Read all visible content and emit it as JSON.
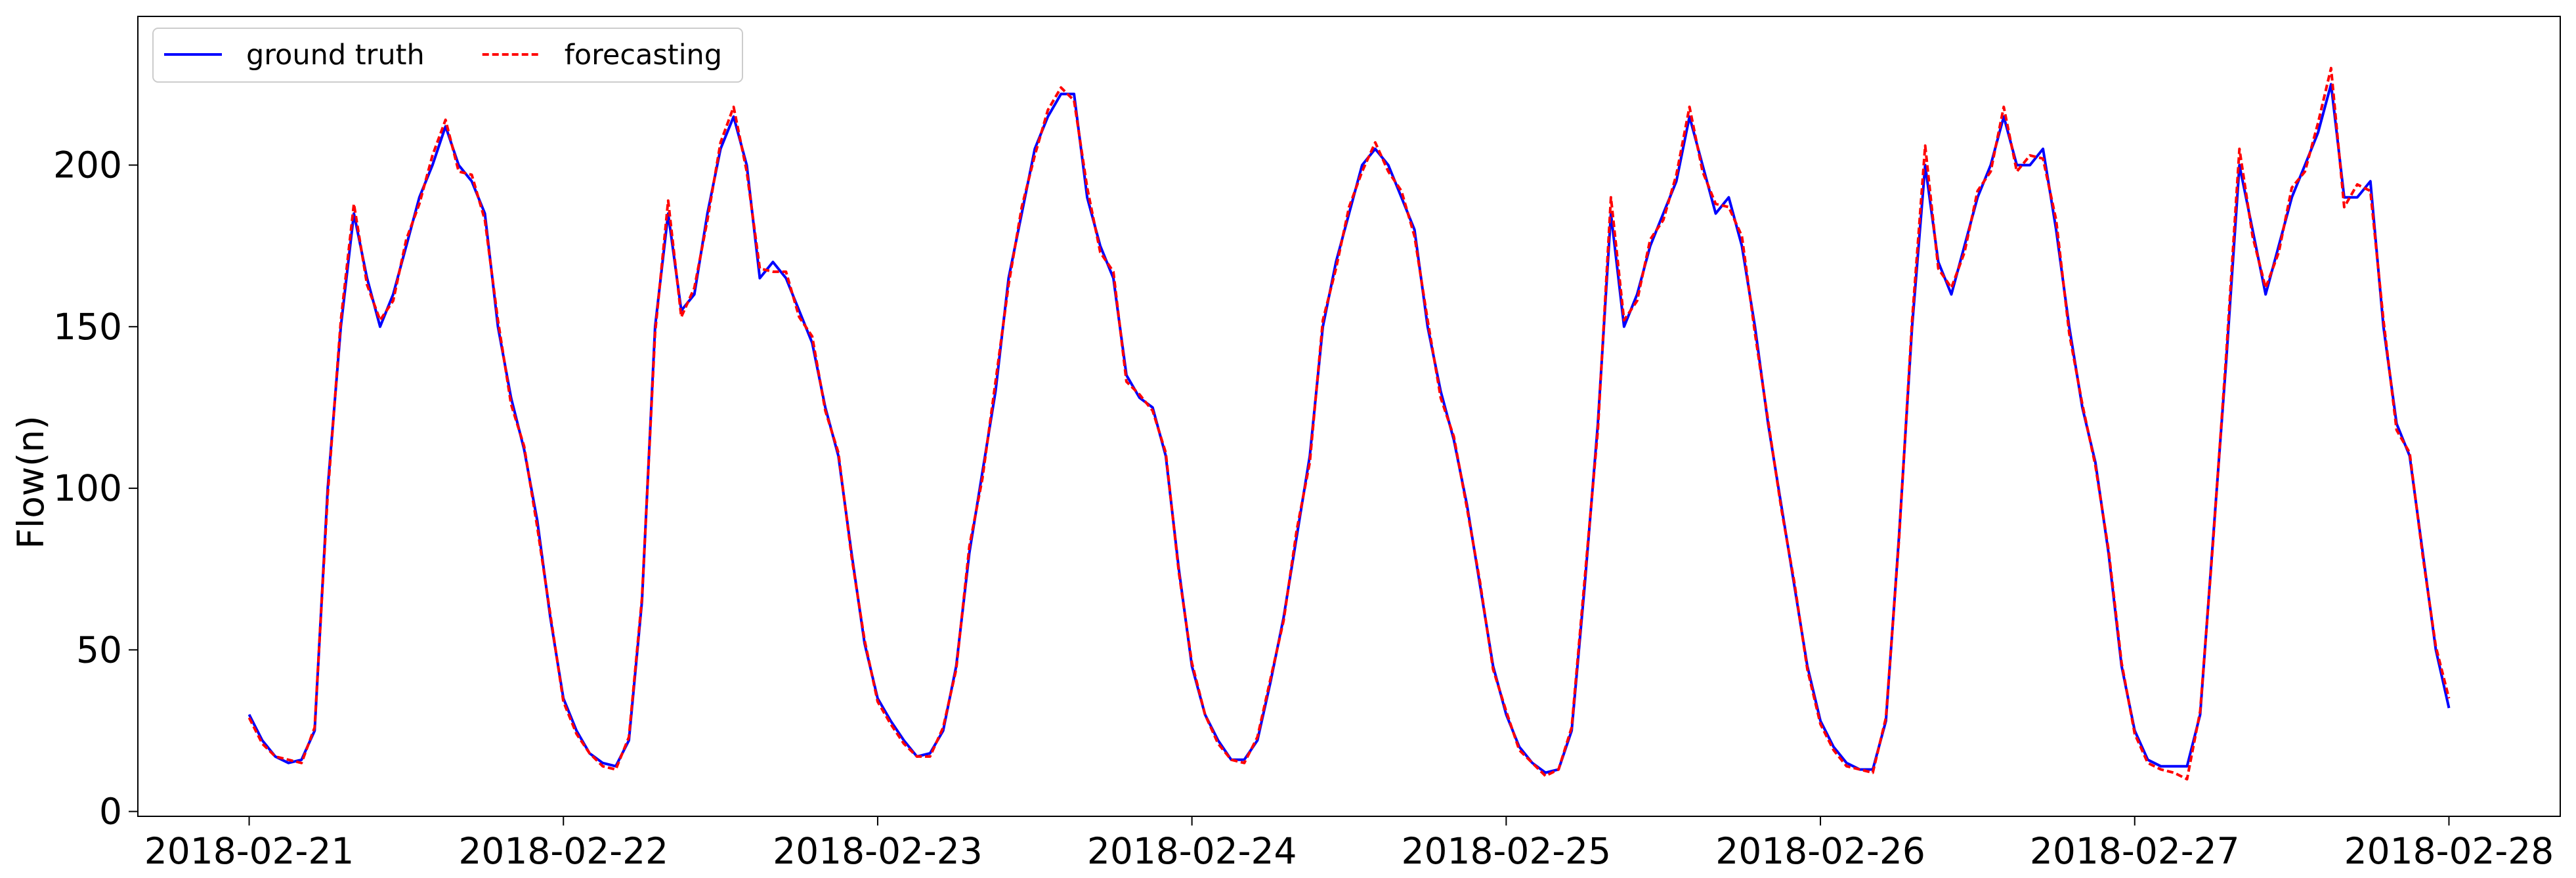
{
  "chart_data": {
    "type": "line",
    "ylabel": "Flow(n)",
    "x": [
      "2018-02-21T00:00",
      "2018-02-21T01:00",
      "2018-02-21T02:00",
      "2018-02-21T03:00",
      "2018-02-21T04:00",
      "2018-02-21T05:00",
      "2018-02-21T06:00",
      "2018-02-21T07:00",
      "2018-02-21T08:00",
      "2018-02-21T09:00",
      "2018-02-21T10:00",
      "2018-02-21T11:00",
      "2018-02-21T12:00",
      "2018-02-21T13:00",
      "2018-02-21T14:00",
      "2018-02-21T15:00",
      "2018-02-21T16:00",
      "2018-02-21T17:00",
      "2018-02-21T18:00",
      "2018-02-21T19:00",
      "2018-02-21T20:00",
      "2018-02-21T21:00",
      "2018-02-21T22:00",
      "2018-02-21T23:00",
      "2018-02-22T00:00",
      "2018-02-22T01:00",
      "2018-02-22T02:00",
      "2018-02-22T03:00",
      "2018-02-22T04:00",
      "2018-02-22T05:00",
      "2018-02-22T06:00",
      "2018-02-22T07:00",
      "2018-02-22T08:00",
      "2018-02-22T09:00",
      "2018-02-22T10:00",
      "2018-02-22T11:00",
      "2018-02-22T12:00",
      "2018-02-22T13:00",
      "2018-02-22T14:00",
      "2018-02-22T15:00",
      "2018-02-22T16:00",
      "2018-02-22T17:00",
      "2018-02-22T18:00",
      "2018-02-22T19:00",
      "2018-02-22T20:00",
      "2018-02-22T21:00",
      "2018-02-22T22:00",
      "2018-02-22T23:00",
      "2018-02-23T00:00",
      "2018-02-23T01:00",
      "2018-02-23T02:00",
      "2018-02-23T03:00",
      "2018-02-23T04:00",
      "2018-02-23T05:00",
      "2018-02-23T06:00",
      "2018-02-23T07:00",
      "2018-02-23T08:00",
      "2018-02-23T09:00",
      "2018-02-23T10:00",
      "2018-02-23T11:00",
      "2018-02-23T12:00",
      "2018-02-23T13:00",
      "2018-02-23T14:00",
      "2018-02-23T15:00",
      "2018-02-23T16:00",
      "2018-02-23T17:00",
      "2018-02-23T18:00",
      "2018-02-23T19:00",
      "2018-02-23T20:00",
      "2018-02-23T21:00",
      "2018-02-23T22:00",
      "2018-02-23T23:00",
      "2018-02-24T00:00",
      "2018-02-24T01:00",
      "2018-02-24T02:00",
      "2018-02-24T03:00",
      "2018-02-24T04:00",
      "2018-02-24T05:00",
      "2018-02-24T06:00",
      "2018-02-24T07:00",
      "2018-02-24T08:00",
      "2018-02-24T09:00",
      "2018-02-24T10:00",
      "2018-02-24T11:00",
      "2018-02-24T12:00",
      "2018-02-24T13:00",
      "2018-02-24T14:00",
      "2018-02-24T15:00",
      "2018-02-24T16:00",
      "2018-02-24T17:00",
      "2018-02-24T18:00",
      "2018-02-24T19:00",
      "2018-02-24T20:00",
      "2018-02-24T21:00",
      "2018-02-24T22:00",
      "2018-02-24T23:00",
      "2018-02-25T00:00",
      "2018-02-25T01:00",
      "2018-02-25T02:00",
      "2018-02-25T03:00",
      "2018-02-25T04:00",
      "2018-02-25T05:00",
      "2018-02-25T06:00",
      "2018-02-25T07:00",
      "2018-02-25T08:00",
      "2018-02-25T09:00",
      "2018-02-25T10:00",
      "2018-02-25T11:00",
      "2018-02-25T12:00",
      "2018-02-25T13:00",
      "2018-02-25T14:00",
      "2018-02-25T15:00",
      "2018-02-25T16:00",
      "2018-02-25T17:00",
      "2018-02-25T18:00",
      "2018-02-25T19:00",
      "2018-02-25T20:00",
      "2018-02-25T21:00",
      "2018-02-25T22:00",
      "2018-02-25T23:00",
      "2018-02-26T00:00",
      "2018-02-26T01:00",
      "2018-02-26T02:00",
      "2018-02-26T03:00",
      "2018-02-26T04:00",
      "2018-02-26T05:00",
      "2018-02-26T06:00",
      "2018-02-26T07:00",
      "2018-02-26T08:00",
      "2018-02-26T09:00",
      "2018-02-26T10:00",
      "2018-02-26T11:00",
      "2018-02-26T12:00",
      "2018-02-26T13:00",
      "2018-02-26T14:00",
      "2018-02-26T15:00",
      "2018-02-26T16:00",
      "2018-02-26T17:00",
      "2018-02-26T18:00",
      "2018-02-26T19:00",
      "2018-02-26T20:00",
      "2018-02-26T21:00",
      "2018-02-26T22:00",
      "2018-02-26T23:00",
      "2018-02-27T00:00",
      "2018-02-27T01:00",
      "2018-02-27T02:00",
      "2018-02-27T03:00",
      "2018-02-27T04:00",
      "2018-02-27T05:00",
      "2018-02-27T06:00",
      "2018-02-27T07:00",
      "2018-02-27T08:00",
      "2018-02-27T09:00",
      "2018-02-27T10:00",
      "2018-02-27T11:00",
      "2018-02-27T12:00",
      "2018-02-27T13:00",
      "2018-02-27T14:00",
      "2018-02-27T15:00",
      "2018-02-27T16:00",
      "2018-02-27T17:00",
      "2018-02-27T18:00",
      "2018-02-27T19:00",
      "2018-02-27T20:00",
      "2018-02-27T21:00",
      "2018-02-27T22:00",
      "2018-02-27T23:00",
      "2018-02-28T00:00"
    ],
    "series": [
      {
        "name": "ground truth",
        "color": "#0000ff",
        "dash": false,
        "values": [
          30,
          22,
          17,
          15,
          16,
          25,
          100,
          150,
          185,
          165,
          150,
          160,
          175,
          190,
          200,
          212,
          200,
          195,
          185,
          150,
          128,
          112,
          90,
          60,
          35,
          25,
          18,
          15,
          14,
          22,
          65,
          150,
          185,
          155,
          160,
          185,
          205,
          215,
          200,
          165,
          170,
          165,
          155,
          145,
          125,
          110,
          80,
          52,
          35,
          28,
          22,
          17,
          18,
          25,
          45,
          80,
          105,
          130,
          165,
          185,
          205,
          215,
          222,
          222,
          190,
          175,
          165,
          135,
          128,
          125,
          110,
          75,
          45,
          30,
          22,
          16,
          16,
          22,
          40,
          60,
          85,
          110,
          150,
          170,
          185,
          200,
          205,
          200,
          190,
          180,
          150,
          130,
          115,
          95,
          70,
          45,
          30,
          20,
          15,
          12,
          13,
          25,
          70,
          120,
          185,
          150,
          160,
          175,
          185,
          195,
          215,
          200,
          185,
          190,
          175,
          150,
          120,
          95,
          70,
          45,
          28,
          20,
          15,
          13,
          13,
          28,
          85,
          150,
          200,
          170,
          160,
          175,
          190,
          200,
          215,
          200,
          200,
          205,
          180,
          150,
          125,
          108,
          80,
          45,
          25,
          16,
          14,
          14,
          14,
          30,
          85,
          140,
          200,
          180,
          160,
          175,
          190,
          200,
          210,
          225,
          190,
          190,
          195,
          150,
          120,
          110,
          80,
          50,
          32
        ]
      },
      {
        "name": "forecasting",
        "color": "#ff0000",
        "dash": true,
        "values": [
          29,
          21,
          17,
          16,
          15,
          26,
          98,
          152,
          188,
          163,
          152,
          158,
          177,
          188,
          203,
          214,
          198,
          197,
          183,
          152,
          126,
          113,
          88,
          61,
          34,
          24,
          18,
          14,
          13,
          23,
          66,
          148,
          189,
          153,
          162,
          183,
          207,
          218,
          198,
          168,
          167,
          167,
          153,
          147,
          124,
          111,
          79,
          53,
          34,
          27,
          21,
          17,
          17,
          26,
          44,
          82,
          103,
          133,
          163,
          187,
          203,
          217,
          224,
          220,
          193,
          173,
          167,
          133,
          129,
          124,
          111,
          74,
          46,
          30,
          21,
          16,
          15,
          23,
          41,
          59,
          87,
          108,
          152,
          168,
          187,
          198,
          207,
          198,
          192,
          178,
          152,
          128,
          116,
          94,
          71,
          44,
          31,
          19,
          15,
          11,
          13,
          26,
          72,
          118,
          190,
          152,
          158,
          177,
          183,
          197,
          218,
          198,
          188,
          187,
          178,
          148,
          121,
          94,
          71,
          44,
          27,
          19,
          14,
          13,
          12,
          29,
          84,
          152,
          206,
          168,
          162,
          173,
          192,
          198,
          218,
          198,
          203,
          202,
          183,
          148,
          126,
          107,
          81,
          46,
          24,
          15,
          13,
          12,
          10,
          31,
          84,
          142,
          205,
          178,
          162,
          173,
          193,
          198,
          213,
          230,
          187,
          194,
          192,
          152,
          118,
          111,
          79,
          51,
          35
        ]
      }
    ],
    "xlim": [
      "2018-02-20T15:30",
      "2018-02-28T08:30"
    ],
    "xticks": [
      "2018-02-21",
      "2018-02-22",
      "2018-02-23",
      "2018-02-24",
      "2018-02-25",
      "2018-02-26",
      "2018-02-27",
      "2018-02-28"
    ],
    "ylim": [
      -1.5,
      246
    ],
    "yticks": [
      0,
      50,
      100,
      150,
      200
    ],
    "grid": false,
    "legend": "upper left"
  }
}
